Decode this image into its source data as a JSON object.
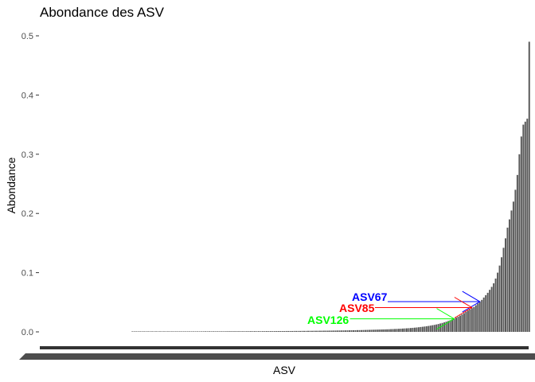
{
  "chart_data": {
    "type": "bar",
    "title": "Abondance des ASV",
    "xlabel": "ASV",
    "ylabel": "Abondance",
    "ylim": [
      0,
      0.5
    ],
    "yticks": [
      "0.0",
      "0.1",
      "0.2",
      "0.3",
      "0.4",
      "0.5"
    ],
    "grid": false,
    "bar_color": "#595959",
    "category_order": "ascending abundance",
    "values": [
      0.0008,
      0.0008,
      0.0008,
      0.0008,
      0.0008,
      0.0008,
      0.0008,
      0.0008,
      0.0008,
      0.0008,
      0.0008,
      0.0008,
      0.0008,
      0.0008,
      0.0008,
      0.0008,
      0.0008,
      0.0008,
      0.0008,
      0.0008,
      0.0008,
      0.0008,
      0.0008,
      0.0008,
      0.0008,
      0.0008,
      0.0008,
      0.0008,
      0.0008,
      0.0008,
      0.0008,
      0.0008,
      0.0008,
      0.0008,
      0.0008,
      0.0008,
      0.0009,
      0.0009,
      0.0009,
      0.0009,
      0.0009,
      0.0009,
      0.0009,
      0.0009,
      0.0009,
      0.0009,
      0.0009,
      0.0009,
      0.001,
      0.001,
      0.001,
      0.001,
      0.001,
      0.001,
      0.001,
      0.001,
      0.001,
      0.001,
      0.001,
      0.0011,
      0.0011,
      0.0011,
      0.0011,
      0.0011,
      0.0011,
      0.0011,
      0.0011,
      0.0012,
      0.0012,
      0.0012,
      0.0012,
      0.0012,
      0.0012,
      0.0013,
      0.0013,
      0.0013,
      0.0013,
      0.0013,
      0.0014,
      0.0014,
      0.0014,
      0.0014,
      0.0015,
      0.0015,
      0.0015,
      0.0015,
      0.0016,
      0.0016,
      0.0016,
      0.0017,
      0.0017,
      0.0017,
      0.0018,
      0.0018,
      0.0018,
      0.0019,
      0.0019,
      0.002,
      0.002,
      0.002,
      0.0021,
      0.0021,
      0.0022,
      0.0022,
      0.0023,
      0.0023,
      0.0024,
      0.0024,
      0.0025,
      0.0025,
      0.0026,
      0.0027,
      0.0027,
      0.0028,
      0.0029,
      0.0029,
      0.003,
      0.0031,
      0.0032,
      0.0033,
      0.0034,
      0.0035,
      0.0036,
      0.0037,
      0.0038,
      0.0039,
      0.004,
      0.0041,
      0.0042,
      0.0043,
      0.0044,
      0.0046,
      0.0047,
      0.0049,
      0.005,
      0.0052,
      0.0054,
      0.0056,
      0.0058,
      0.006,
      0.0062,
      0.0065,
      0.0068,
      0.0071,
      0.0074,
      0.0078,
      0.0082,
      0.0086,
      0.009,
      0.0095,
      0.01,
      0.0106,
      0.0112,
      0.0118,
      0.0125,
      0.0133,
      0.0142,
      0.0151,
      0.0161,
      0.0172,
      0.0184,
      0.0197,
      0.021,
      0.0225,
      0.024,
      0.0257,
      0.0275,
      0.0295,
      0.0316,
      0.034,
      0.036,
      0.038,
      0.04,
      0.042,
      0.045,
      0.048,
      0.051,
      0.054,
      0.058,
      0.062,
      0.066,
      0.071,
      0.076,
      0.082,
      0.09,
      0.1,
      0.112,
      0.126,
      0.142,
      0.158,
      0.176,
      0.19,
      0.205,
      0.22,
      0.24,
      0.265,
      0.3,
      0.33,
      0.35,
      0.355,
      0.36,
      0.49
    ],
    "annotations": [
      {
        "label": "ASV67",
        "color": "#0000ff",
        "y": 0.051
      },
      {
        "label": "ASV85",
        "color": "#ff0000",
        "y": 0.041
      },
      {
        "label": "ASV126",
        "color": "#00ff00",
        "y": 0.022
      }
    ]
  }
}
